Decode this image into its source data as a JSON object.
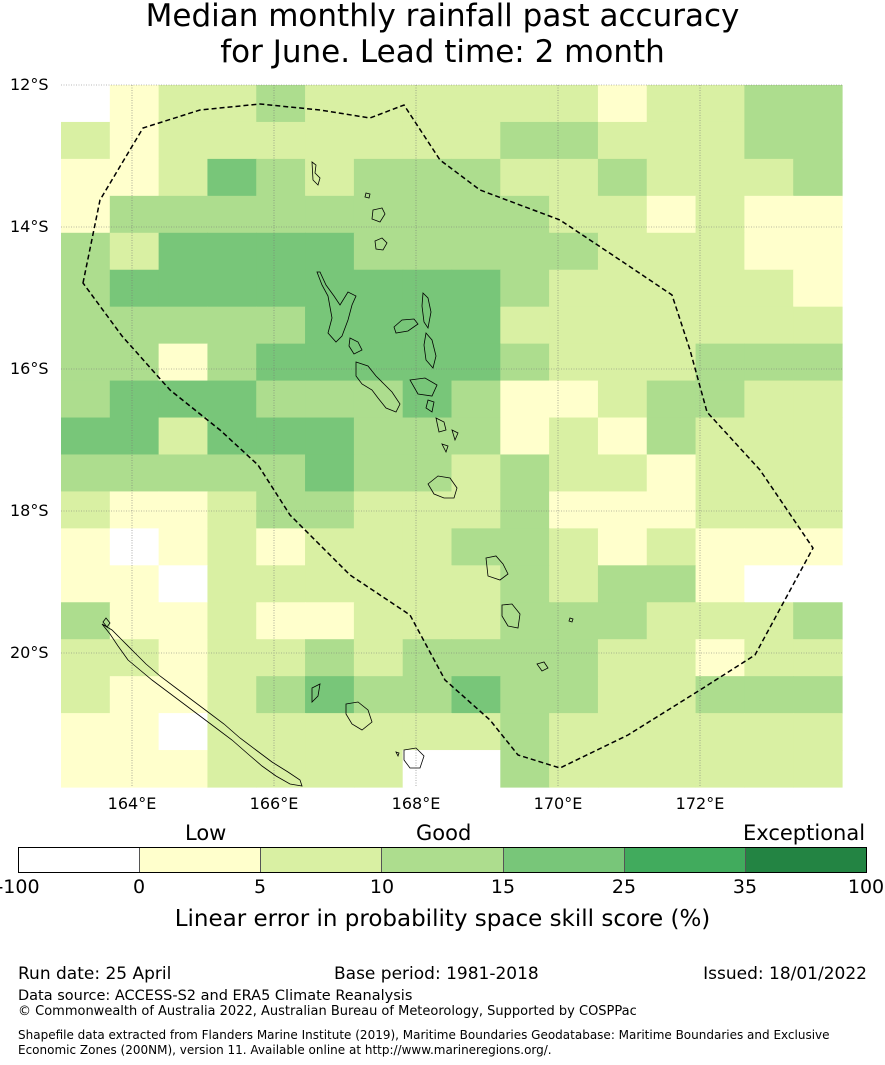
{
  "title_line1": "Median monthly rainfall past accuracy",
  "title_line2": "for June. Lead time: 2 month",
  "map": {
    "lon_range": [
      163.0,
      174.0
    ],
    "lat_range": [
      -21.9,
      -12.0
    ],
    "lat_labels": [
      "12°S",
      "14°S",
      "16°S",
      "18°S",
      "20°S"
    ],
    "lon_labels": [
      "164°E",
      "166°E",
      "168°E",
      "170°E",
      "172°E"
    ],
    "grid_colors": [
      [
        "#ffffff",
        "#ffffcc",
        "#d9f0a3",
        "#d9f0a3",
        "#addd8e",
        "#d9f0a3",
        "#d9f0a3",
        "#d9f0a3",
        "#d9f0a3",
        "#d9f0a3",
        "#d9f0a3",
        "#ffffcc",
        "#d9f0a3",
        "#d9f0a3",
        "#addd8e",
        "#addd8e"
      ],
      [
        "#d9f0a3",
        "#ffffcc",
        "#d9f0a3",
        "#d9f0a3",
        "#d9f0a3",
        "#d9f0a3",
        "#d9f0a3",
        "#d9f0a3",
        "#d9f0a3",
        "#addd8e",
        "#addd8e",
        "#d9f0a3",
        "#d9f0a3",
        "#d9f0a3",
        "#addd8e",
        "#addd8e"
      ],
      [
        "#ffffcc",
        "#ffffcc",
        "#d9f0a3",
        "#78c679",
        "#addd8e",
        "#d9f0a3",
        "#addd8e",
        "#addd8e",
        "#addd8e",
        "#d9f0a3",
        "#d9f0a3",
        "#addd8e",
        "#d9f0a3",
        "#d9f0a3",
        "#d9f0a3",
        "#addd8e"
      ],
      [
        "#ffffcc",
        "#addd8e",
        "#addd8e",
        "#addd8e",
        "#addd8e",
        "#addd8e",
        "#addd8e",
        "#addd8e",
        "#addd8e",
        "#addd8e",
        "#d9f0a3",
        "#d9f0a3",
        "#ffffcc",
        "#d9f0a3",
        "#ffffcc",
        "#ffffcc"
      ],
      [
        "#addd8e",
        "#d9f0a3",
        "#78c679",
        "#78c679",
        "#78c679",
        "#78c679",
        "#addd8e",
        "#addd8e",
        "#addd8e",
        "#addd8e",
        "#addd8e",
        "#d9f0a3",
        "#d9f0a3",
        "#d9f0a3",
        "#ffffcc",
        "#ffffcc"
      ],
      [
        "#addd8e",
        "#78c679",
        "#78c679",
        "#78c679",
        "#78c679",
        "#78c679",
        "#78c679",
        "#78c679",
        "#78c679",
        "#addd8e",
        "#d9f0a3",
        "#d9f0a3",
        "#d9f0a3",
        "#d9f0a3",
        "#d9f0a3",
        "#ffffcc"
      ],
      [
        "#addd8e",
        "#addd8e",
        "#addd8e",
        "#addd8e",
        "#addd8e",
        "#78c679",
        "#78c679",
        "#78c679",
        "#78c679",
        "#d9f0a3",
        "#d9f0a3",
        "#d9f0a3",
        "#d9f0a3",
        "#d9f0a3",
        "#d9f0a3",
        "#d9f0a3"
      ],
      [
        "#addd8e",
        "#addd8e",
        "#ffffcc",
        "#addd8e",
        "#78c679",
        "#78c679",
        "#78c679",
        "#78c679",
        "#78c679",
        "#addd8e",
        "#d9f0a3",
        "#d9f0a3",
        "#d9f0a3",
        "#addd8e",
        "#addd8e",
        "#addd8e"
      ],
      [
        "#addd8e",
        "#78c679",
        "#78c679",
        "#78c679",
        "#addd8e",
        "#addd8e",
        "#addd8e",
        "#78c679",
        "#addd8e",
        "#ffffcc",
        "#ffffcc",
        "#d9f0a3",
        "#addd8e",
        "#addd8e",
        "#d9f0a3",
        "#d9f0a3"
      ],
      [
        "#78c679",
        "#78c679",
        "#d9f0a3",
        "#78c679",
        "#78c679",
        "#78c679",
        "#addd8e",
        "#addd8e",
        "#addd8e",
        "#ffffcc",
        "#d9f0a3",
        "#ffffcc",
        "#addd8e",
        "#d9f0a3",
        "#d9f0a3",
        "#d9f0a3"
      ],
      [
        "#addd8e",
        "#addd8e",
        "#addd8e",
        "#addd8e",
        "#addd8e",
        "#78c679",
        "#addd8e",
        "#addd8e",
        "#d9f0a3",
        "#addd8e",
        "#d9f0a3",
        "#d9f0a3",
        "#ffffcc",
        "#d9f0a3",
        "#d9f0a3",
        "#d9f0a3"
      ],
      [
        "#d9f0a3",
        "#ffffcc",
        "#ffffcc",
        "#d9f0a3",
        "#addd8e",
        "#addd8e",
        "#d9f0a3",
        "#d9f0a3",
        "#d9f0a3",
        "#addd8e",
        "#ffffcc",
        "#ffffcc",
        "#ffffcc",
        "#d9f0a3",
        "#d9f0a3",
        "#d9f0a3"
      ],
      [
        "#ffffcc",
        "#ffffff",
        "#ffffcc",
        "#d9f0a3",
        "#ffffcc",
        "#d9f0a3",
        "#d9f0a3",
        "#d9f0a3",
        "#addd8e",
        "#addd8e",
        "#d9f0a3",
        "#ffffcc",
        "#d9f0a3",
        "#ffffcc",
        "#ffffcc",
        "#ffffcc"
      ],
      [
        "#ffffcc",
        "#ffffcc",
        "#ffffff",
        "#d9f0a3",
        "#d9f0a3",
        "#d9f0a3",
        "#d9f0a3",
        "#d9f0a3",
        "#d9f0a3",
        "#addd8e",
        "#d9f0a3",
        "#addd8e",
        "#addd8e",
        "#ffffcc",
        "#ffffff",
        "#ffffff"
      ],
      [
        "#addd8e",
        "#ffffcc",
        "#ffffcc",
        "#d9f0a3",
        "#ffffcc",
        "#ffffcc",
        "#d9f0a3",
        "#d9f0a3",
        "#d9f0a3",
        "#addd8e",
        "#addd8e",
        "#addd8e",
        "#d9f0a3",
        "#d9f0a3",
        "#d9f0a3",
        "#addd8e"
      ],
      [
        "#d9f0a3",
        "#d9f0a3",
        "#ffffcc",
        "#d9f0a3",
        "#d9f0a3",
        "#addd8e",
        "#d9f0a3",
        "#addd8e",
        "#addd8e",
        "#addd8e",
        "#addd8e",
        "#d9f0a3",
        "#d9f0a3",
        "#ffffcc",
        "#d9f0a3",
        "#d9f0a3"
      ],
      [
        "#d9f0a3",
        "#ffffcc",
        "#ffffcc",
        "#d9f0a3",
        "#addd8e",
        "#78c679",
        "#addd8e",
        "#addd8e",
        "#78c679",
        "#addd8e",
        "#addd8e",
        "#d9f0a3",
        "#d9f0a3",
        "#addd8e",
        "#addd8e",
        "#addd8e"
      ],
      [
        "#ffffcc",
        "#ffffcc",
        "#ffffff",
        "#d9f0a3",
        "#d9f0a3",
        "#d9f0a3",
        "#d9f0a3",
        "#d9f0a3",
        "#d9f0a3",
        "#addd8e",
        "#d9f0a3",
        "#d9f0a3",
        "#d9f0a3",
        "#d9f0a3",
        "#d9f0a3",
        "#d9f0a3"
      ],
      [
        "#ffffcc",
        "#ffffcc",
        "#ffffcc",
        "#d9f0a3",
        "#d9f0a3",
        "#d9f0a3",
        "#d9f0a3",
        "#ffffff",
        "#ffffff",
        "#addd8e",
        "#d9f0a3",
        "#d9f0a3",
        "#d9f0a3",
        "#d9f0a3",
        "#d9f0a3",
        "#d9f0a3"
      ]
    ]
  },
  "categories": {
    "low": "Low",
    "good": "Good",
    "exceptional": "Exceptional"
  },
  "colorbar": {
    "colors": [
      "#ffffff",
      "#ffffcc",
      "#d9f0a3",
      "#addd8e",
      "#78c679",
      "#41ab5d",
      "#238443"
    ],
    "ticks": [
      "-100",
      "0",
      "5",
      "10",
      "15",
      "25",
      "35",
      "100"
    ],
    "label": "Linear error in probability space skill score (%)"
  },
  "footer": {
    "run_date": "Run date: 25 April",
    "base_period": "Base period: 1981-2018",
    "issued": "Issued: 18/01/2022",
    "data_source": "Data source: ACCESS-S2 and ERA5 Climate Reanalysis",
    "copyright": "© Commonwealth of Australia 2022, Australian Bureau of Meteorology, Supported by COSPPac",
    "shapefile_line1": "Shapefile data extracted from Flanders Marine Institute (2019), Maritime Boundaries Geodatabase: Maritime Boundaries and Exclusive",
    "shapefile_line2": "Economic Zones (200NM), version 11. Available online at http://www.marineregions.org/."
  }
}
